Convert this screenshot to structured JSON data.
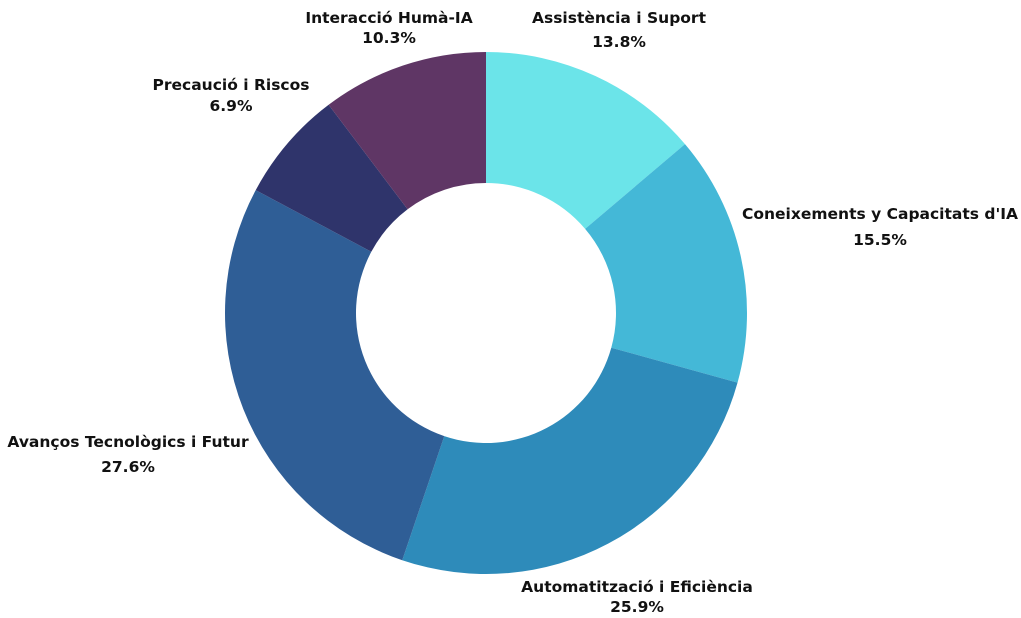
{
  "chart_data": {
    "type": "pie",
    "donut": true,
    "start_angle_deg": 0,
    "direction": "clockwise",
    "slices": [
      {
        "name": "Assistència i Suport",
        "value": 13.8,
        "label": "13.8%",
        "color": "#6be4e9"
      },
      {
        "name": "Coneixements y Capacitats d'IA",
        "value": 15.5,
        "label": "15.5%",
        "color": "#44b8d7"
      },
      {
        "name": "Automatització i Eficiència",
        "value": 25.9,
        "label": "25.9%",
        "color": "#2e8bba"
      },
      {
        "name": "Avanços Tecnològics i Futur",
        "value": 27.6,
        "label": "27.6%",
        "color": "#2f5e96"
      },
      {
        "name": "Precaució i Riscos",
        "value": 6.9,
        "label": "6.9%",
        "color": "#2f346b"
      },
      {
        "name": "Interacció Humà-IA",
        "value": 10.3,
        "label": "10.3%",
        "color": "#5f3665"
      }
    ]
  }
}
